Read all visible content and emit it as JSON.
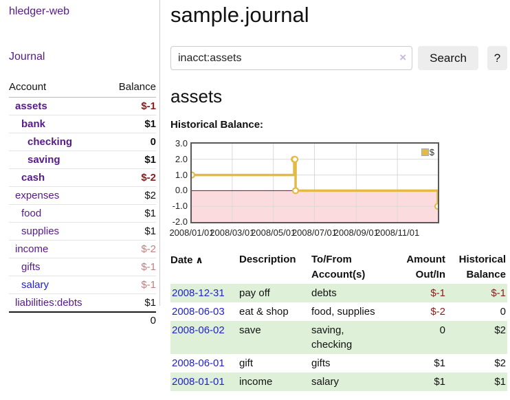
{
  "colors": {
    "purple": "#551a8b",
    "link-blue": "#2222cc",
    "neg-strong": "#8b1a1a",
    "neg-soft": "#c08080",
    "stripe": "#dff0d8",
    "gold": "#e3ba45",
    "neg-fill": "#fbdbde",
    "zero-line": "#a40000",
    "grid": "#d9d9d9",
    "clear-x": "#c6b9da"
  },
  "sidebar": {
    "brand": "hledger-web",
    "nav_journal": "Journal",
    "table": {
      "account_header": "Account",
      "balance_header": "Balance"
    },
    "accounts": [
      {
        "name": "assets",
        "balance": "$-1",
        "level": 1,
        "bold": true,
        "balance_style": "neg-strong"
      },
      {
        "name": "bank",
        "balance": "$1",
        "level": 2,
        "bold": true,
        "balance_style": ""
      },
      {
        "name": "checking",
        "balance": "0",
        "level": 3,
        "bold": true,
        "balance_style": ""
      },
      {
        "name": "saving",
        "balance": "$1",
        "level": 3,
        "bold": true,
        "balance_style": ""
      },
      {
        "name": "cash",
        "balance": "$-2",
        "level": 2,
        "bold": true,
        "balance_style": "neg-strong"
      },
      {
        "name": "expenses",
        "balance": "$2",
        "level": 1,
        "bold": false,
        "balance_style": ""
      },
      {
        "name": "food",
        "balance": "$1",
        "level": 2,
        "bold": false,
        "balance_style": ""
      },
      {
        "name": "supplies",
        "balance": "$1",
        "level": 2,
        "bold": false,
        "balance_style": ""
      },
      {
        "name": "income",
        "balance": "$-2",
        "level": 1,
        "bold": false,
        "balance_style": "neg-soft"
      },
      {
        "name": "gifts",
        "balance": "$-1",
        "level": 2,
        "bold": false,
        "balance_style": "neg-soft"
      },
      {
        "name": "salary",
        "balance": "$-1",
        "level": 2,
        "bold": false,
        "balance_style": "neg-soft",
        "name_style": "blue"
      },
      {
        "name": "liabilities:debts",
        "balance": "$1",
        "level": 1,
        "bold": false,
        "balance_style": ""
      }
    ],
    "total": "0"
  },
  "main": {
    "title": "sample.journal",
    "search": {
      "value": "inacct:assets",
      "clear_icon": "×",
      "search_button": "Search",
      "help_button": "?"
    },
    "account_heading": "assets",
    "chart_label": "Historical Balance:"
  },
  "chart_data": {
    "type": "line",
    "step": true,
    "title": "Historical Balance",
    "xlim": [
      "2008-01-01",
      "2008-12-31"
    ],
    "ylim": [
      -2,
      3
    ],
    "series": [
      {
        "name": "$",
        "points": [
          [
            "2008-01-01",
            1
          ],
          [
            "2008-06-01",
            2
          ],
          [
            "2008-06-02",
            2
          ],
          [
            "2008-06-03",
            0
          ],
          [
            "2008-12-31",
            -1
          ]
        ]
      }
    ],
    "y_ticks": [
      {
        "label": "3.0",
        "value": 3
      },
      {
        "label": "2.0",
        "value": 2
      },
      {
        "label": "1.0",
        "value": 1
      },
      {
        "label": "0.0",
        "value": 0
      },
      {
        "label": "-1.0",
        "value": -1
      },
      {
        "label": "-2.0",
        "value": -2
      }
    ],
    "x_ticks": [
      {
        "label": "2008/01/01",
        "date": "2008-01-01"
      },
      {
        "label": "2008/03/01",
        "date": "2008-03-01"
      },
      {
        "label": "2008/05/01",
        "date": "2008-05-01"
      },
      {
        "label": "2008/07/01",
        "date": "2008-07-01"
      },
      {
        "label": "2008/09/01",
        "date": "2008-09-01"
      },
      {
        "label": "2008/11/01",
        "date": "2008-11-01"
      }
    ],
    "legend": [
      {
        "label": "$"
      }
    ],
    "legend_position": "top-right",
    "grid": true,
    "negative_region_filled": true
  },
  "register": {
    "columns": [
      {
        "label": "Date",
        "align": "left",
        "sorted": "asc",
        "sort_arrow": "∧"
      },
      {
        "label": "Description",
        "align": "left"
      },
      {
        "label": "To/From\nAccount(s)",
        "align": "left"
      },
      {
        "label": "Amount\nOut/In",
        "align": "right"
      },
      {
        "label": "Historical\nBalance",
        "align": "right"
      }
    ],
    "rows": [
      {
        "date": "2008-12-31",
        "description": "pay off",
        "accounts": [
          "debts"
        ],
        "amount": "$-1",
        "amount_neg": true,
        "balance": "$-1",
        "balance_neg": true
      },
      {
        "date": "2008-06-03",
        "description": "eat & shop",
        "accounts": [
          "food, supplies"
        ],
        "amount": "$-2",
        "amount_neg": true,
        "balance": "0",
        "balance_neg": false
      },
      {
        "date": "2008-06-02",
        "description": "save",
        "accounts": [
          "saving,",
          "checking"
        ],
        "amount": "0",
        "amount_neg": false,
        "balance": "$2",
        "balance_neg": false
      },
      {
        "date": "2008-06-01",
        "description": "gift",
        "accounts": [
          "gifts"
        ],
        "amount": "$1",
        "amount_neg": false,
        "balance": "$2",
        "balance_neg": false
      },
      {
        "date": "2008-01-01",
        "description": "income",
        "accounts": [
          "salary"
        ],
        "amount": "$1",
        "amount_neg": false,
        "balance": "$1",
        "balance_neg": false
      }
    ]
  }
}
